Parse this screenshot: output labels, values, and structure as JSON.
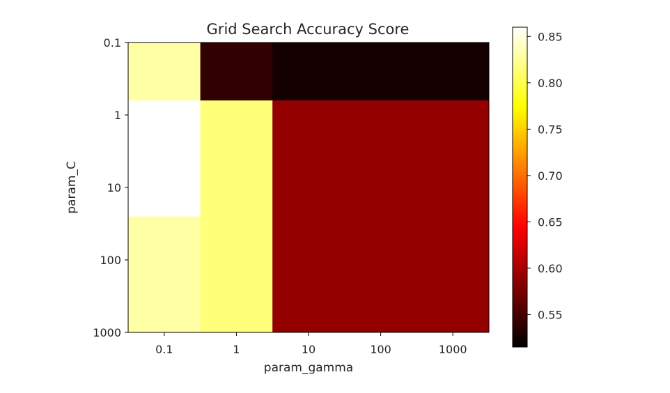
{
  "chart_data": {
    "type": "heatmap",
    "title": "Grid Search Accuracy Score",
    "xlabel": "param_gamma",
    "ylabel": "param_C",
    "x_categories": [
      "0.1",
      "1",
      "10",
      "100",
      "1000"
    ],
    "y_categories": [
      "0.1",
      "1",
      "10",
      "100",
      "1000"
    ],
    "colormap": "hot",
    "color_range": [
      0.515,
      0.86
    ],
    "values": [
      [
        0.83,
        0.54,
        0.525,
        0.525,
        0.525
      ],
      [
        0.86,
        0.815,
        0.59,
        0.59,
        0.59
      ],
      [
        0.86,
        0.815,
        0.59,
        0.59,
        0.59
      ],
      [
        0.83,
        0.815,
        0.59,
        0.59,
        0.59
      ],
      [
        0.83,
        0.815,
        0.59,
        0.59,
        0.59
      ]
    ],
    "colorbar_ticks": [
      "0.55",
      "0.60",
      "0.65",
      "0.70",
      "0.75",
      "0.80",
      "0.85"
    ]
  }
}
